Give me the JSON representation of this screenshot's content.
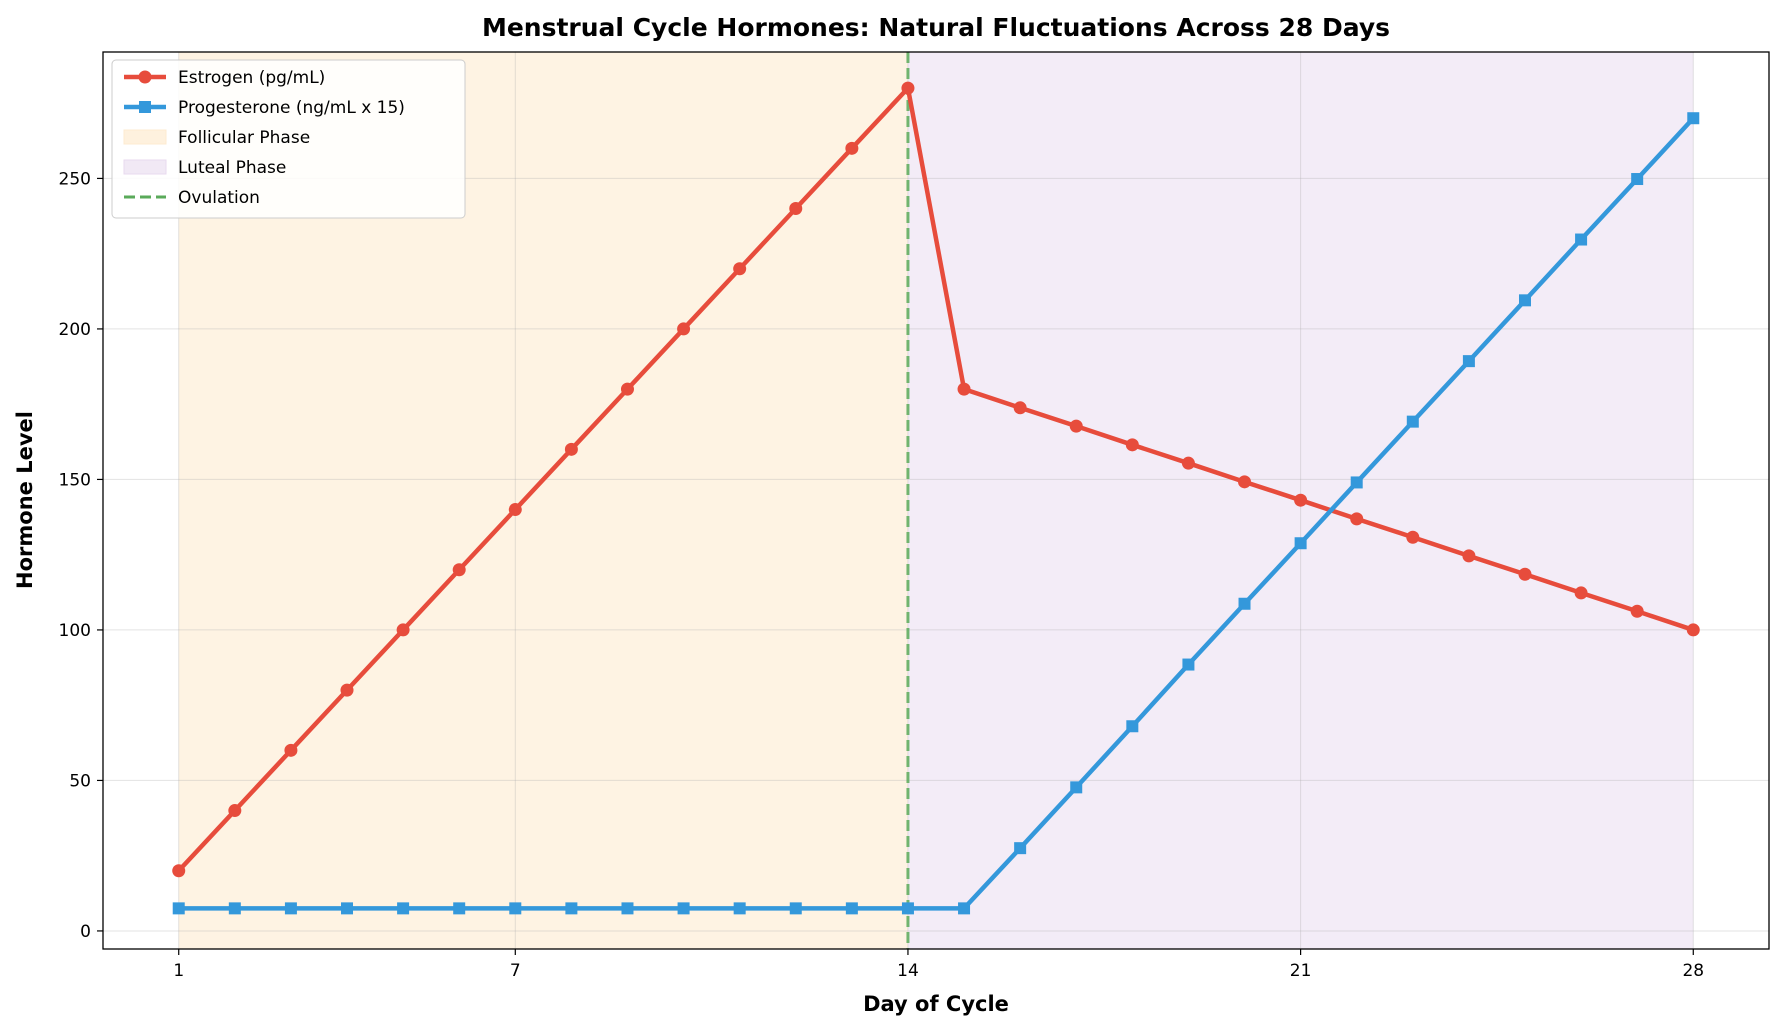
{
  "chart_data": {
    "type": "line",
    "title": "Menstrual Cycle Hormones: Natural Fluctuations Across 28 Days",
    "xlabel": "Day of Cycle",
    "ylabel": "Hormone Level",
    "xlim": [
      -0.35,
      29.35
    ],
    "ylim": [
      -6,
      292
    ],
    "xticks": [
      1,
      7,
      14,
      21,
      28
    ],
    "yticks": [
      0,
      50,
      100,
      150,
      200,
      250
    ],
    "grid": true,
    "legend_position": "top-left",
    "x": [
      1,
      2,
      3,
      4,
      5,
      6,
      7,
      8,
      9,
      10,
      11,
      12,
      13,
      14,
      15,
      16,
      17,
      18,
      19,
      20,
      21,
      22,
      23,
      24,
      25,
      26,
      27,
      28
    ],
    "series": [
      {
        "name": "Estrogen (pg/mL)",
        "color": "#e74c3c",
        "marker": "circle",
        "values": [
          20,
          40,
          60,
          80,
          100,
          120,
          140,
          160,
          180,
          200,
          220,
          240,
          260,
          280,
          180,
          173.8,
          167.7,
          161.5,
          155.4,
          149.2,
          143.1,
          136.9,
          130.8,
          124.6,
          118.5,
          112.3,
          106.2,
          100
        ]
      },
      {
        "name": "Progesterone (ng/mL x 15)",
        "color": "#3498db",
        "marker": "square",
        "values": [
          7.5,
          7.5,
          7.5,
          7.5,
          7.5,
          7.5,
          7.5,
          7.5,
          7.5,
          7.5,
          7.5,
          7.5,
          7.5,
          7.5,
          7.5,
          27.5,
          47.7,
          68,
          88.5,
          108.7,
          128.8,
          149,
          169.2,
          189.3,
          209.5,
          229.7,
          249.8,
          270
        ]
      }
    ],
    "regions": [
      {
        "name": "Follicular Phase",
        "x_start": 1,
        "x_end": 14,
        "color": "#fdebd0"
      },
      {
        "name": "Luteal Phase",
        "x_start": 14,
        "x_end": 28,
        "color": "#e8daef"
      }
    ],
    "vlines": [
      {
        "name": "Ovulation",
        "x": 14,
        "color": "#5aaa5a",
        "style": "dashed"
      }
    ]
  }
}
